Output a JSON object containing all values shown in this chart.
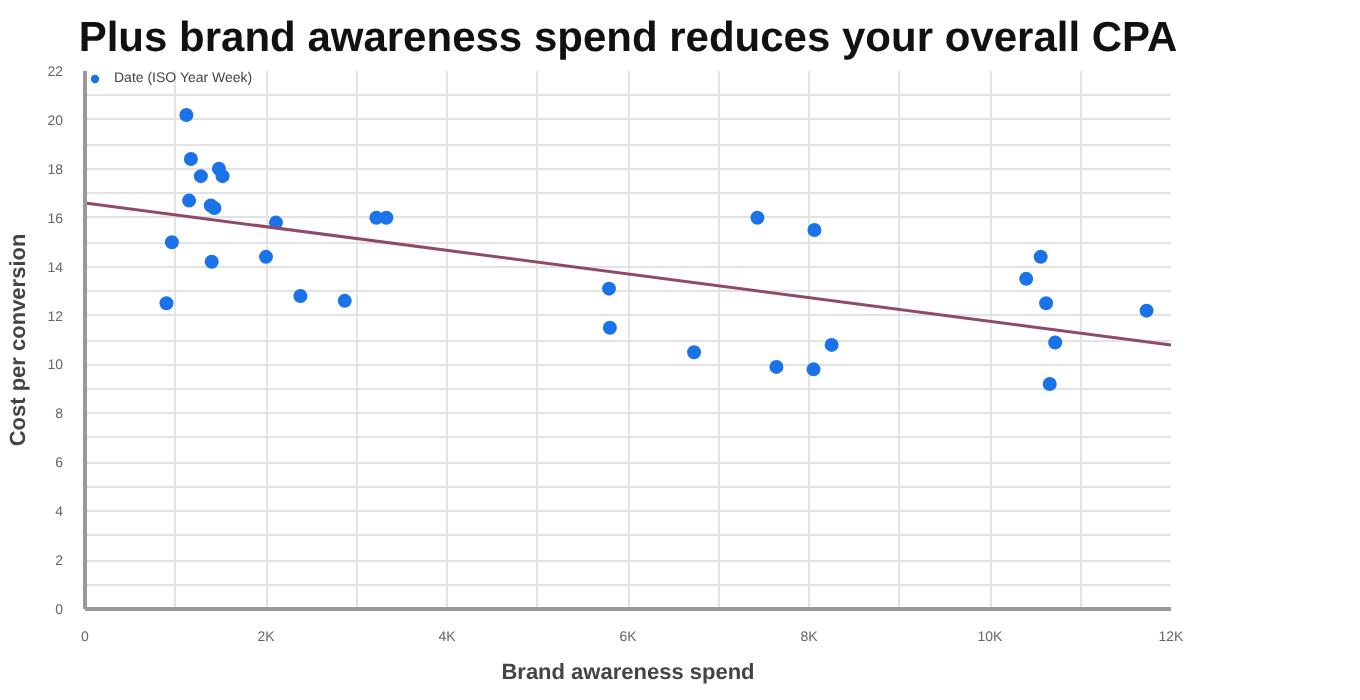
{
  "chart_data": {
    "type": "scatter",
    "title": "Plus brand awareness spend reduces your overall CPA",
    "xlabel": "Brand awareness spend",
    "ylabel": "Cost per conversion",
    "series": [
      {
        "name": "Date (ISO Year Week)",
        "color": "#1a73e8",
        "marker": "circle",
        "x": [
          900,
          960,
          1120,
          1170,
          1150,
          1280,
          1390,
          1430,
          1400,
          1480,
          1520,
          2000,
          2110,
          2380,
          2870,
          3220,
          3330,
          5790,
          5800,
          6730,
          7430,
          8060,
          7640,
          8050,
          8250,
          10400,
          10560,
          10620,
          10720,
          10660,
          11730
        ],
        "values": [
          12.5,
          15.0,
          20.2,
          18.4,
          16.7,
          17.7,
          16.5,
          16.4,
          14.2,
          18.0,
          17.7,
          14.4,
          15.8,
          12.8,
          12.6,
          16.0,
          16.0,
          13.1,
          11.5,
          10.5,
          16.0,
          15.5,
          9.9,
          9.8,
          10.8,
          13.5,
          14.4,
          12.5,
          10.9,
          9.2,
          12.2
        ]
      },
      {
        "type": "line",
        "color": "#8e4a68",
        "x": [
          0,
          12000
        ],
        "values": [
          16.6,
          10.8
        ]
      }
    ],
    "xlim": [
      0,
      12000
    ],
    "ylim": [
      0,
      22
    ],
    "xticks": [
      {
        "value": 0,
        "label": "0"
      },
      {
        "value": 1000,
        "label": null
      },
      {
        "value": 2000,
        "label": "2K"
      },
      {
        "value": 3000,
        "label": null
      },
      {
        "value": 4000,
        "label": "4K"
      },
      {
        "value": 5000,
        "label": null
      },
      {
        "value": 6000,
        "label": "6K"
      },
      {
        "value": 7000,
        "label": null
      },
      {
        "value": 8000,
        "label": "8K"
      },
      {
        "value": 9000,
        "label": null
      },
      {
        "value": 10000,
        "label": "10K"
      },
      {
        "value": 11000,
        "label": null
      },
      {
        "value": 12000,
        "label": "12K"
      }
    ],
    "yticks": [
      0,
      {
        "value": 1,
        "label": null
      },
      2,
      {
        "value": 3,
        "label": null
      },
      4,
      {
        "value": 5,
        "label": null
      },
      6,
      {
        "value": 7,
        "label": null
      },
      8,
      {
        "value": 9,
        "label": null
      },
      10,
      {
        "value": 11,
        "label": null
      },
      12,
      {
        "value": 13,
        "label": null
      },
      14,
      {
        "value": 15,
        "label": null
      },
      16,
      {
        "value": 17,
        "label": null
      },
      18,
      {
        "value": 19,
        "label": null
      },
      20,
      {
        "value": 21,
        "label": null
      },
      22
    ],
    "grid": true,
    "legend": "top left"
  }
}
